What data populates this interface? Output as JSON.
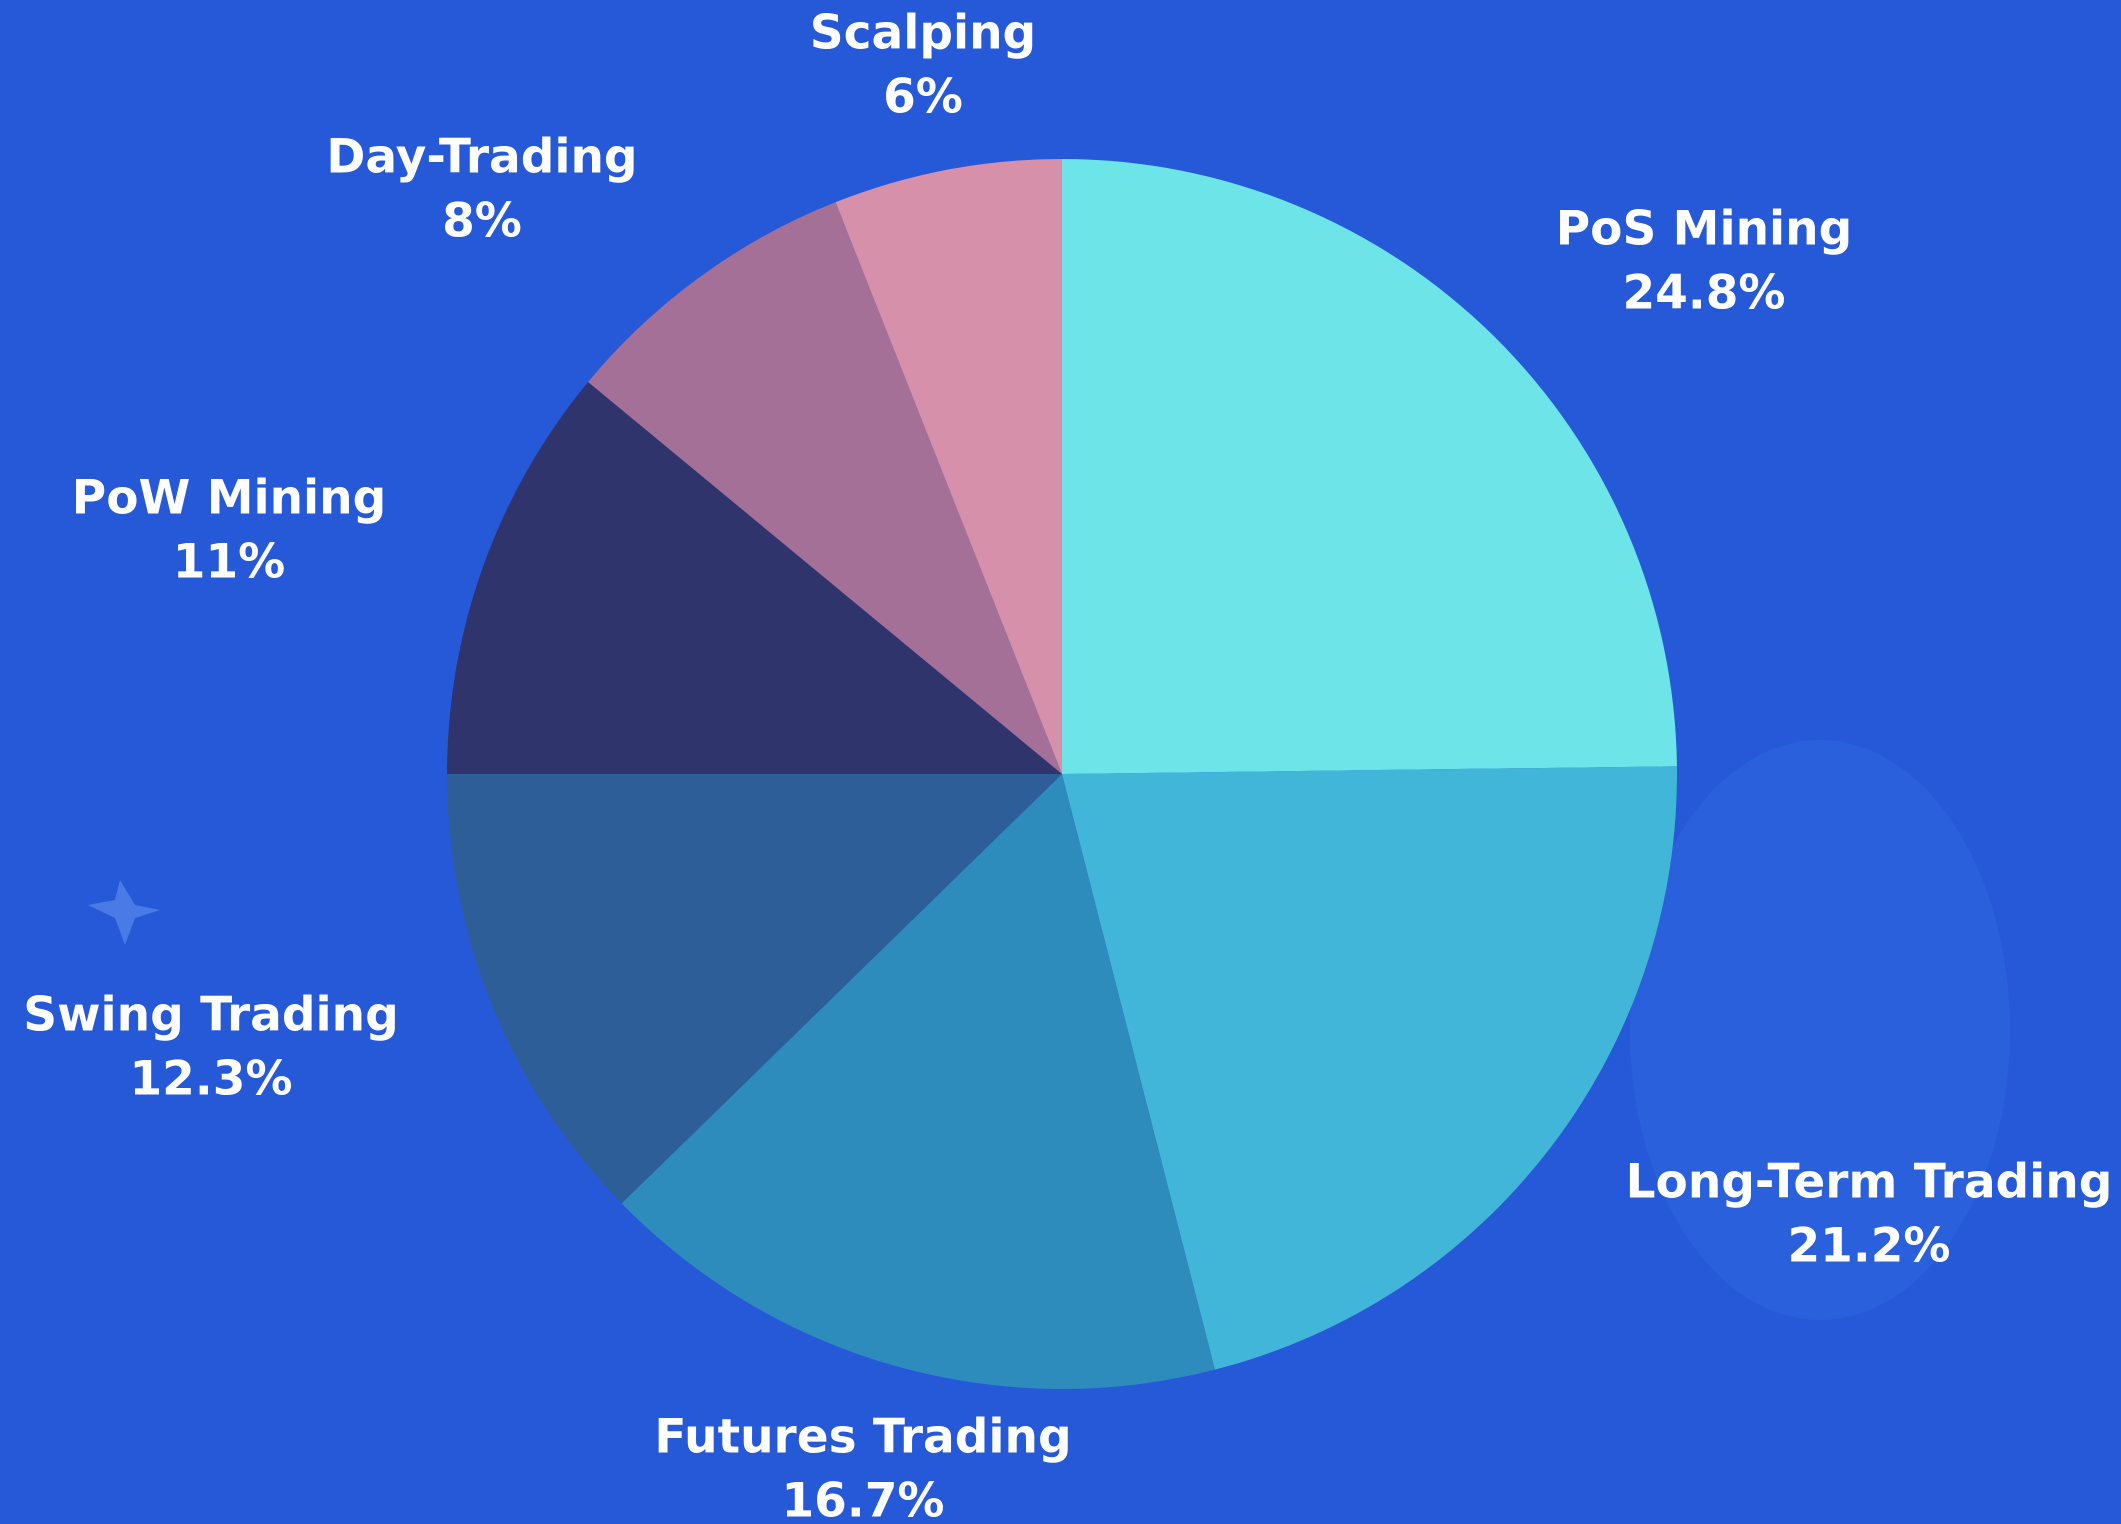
{
  "chart_data": {
    "type": "pie",
    "categories": [
      "PoS Mining",
      "Long-Term Trading",
      "Futures Trading",
      "Swing Trading",
      "PoW Mining",
      "Day-Trading",
      "Scalping"
    ],
    "values": [
      24.8,
      21.2,
      16.7,
      12.3,
      11,
      8,
      6
    ],
    "value_labels": [
      "24.8%",
      "21.2%",
      "16.7%",
      "12.3%",
      "11%",
      "8%",
      "6%"
    ],
    "colors": [
      "#6ce4e8",
      "#42b6d8",
      "#2e8cbc",
      "#2e5e98",
      "#30346c",
      "#a47098",
      "#d690aa"
    ]
  }
}
